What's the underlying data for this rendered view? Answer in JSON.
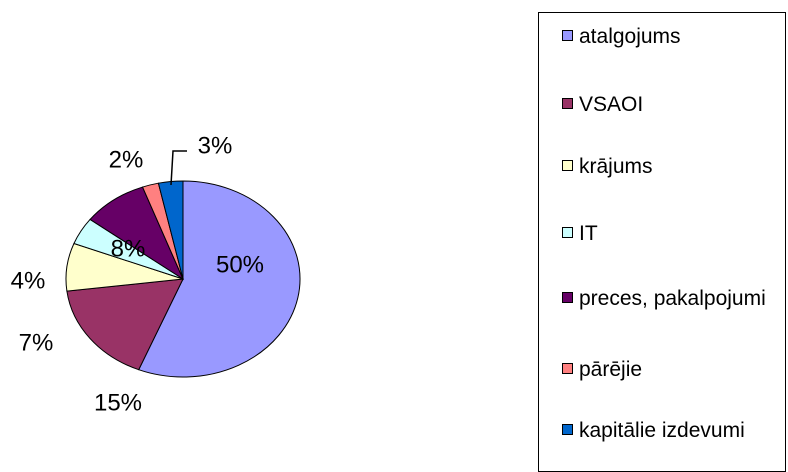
{
  "chart_data": {
    "type": "pie",
    "categories": [
      "atalgojums",
      "VSAOI",
      "krājums",
      "IT",
      "preces, pakalpojumi",
      "pārējie",
      "kapitālie izdevumi"
    ],
    "values": [
      50,
      15,
      7,
      4,
      8,
      2,
      3
    ],
    "value_labels": [
      "50%",
      "15%",
      "7%",
      "4%",
      "8%",
      "2%",
      "3%"
    ],
    "colors": [
      "#9999ff",
      "#993366",
      "#ffffcc",
      "#ccffff",
      "#660066",
      "#ff8080",
      "#0066cc"
    ],
    "legend": "right"
  }
}
